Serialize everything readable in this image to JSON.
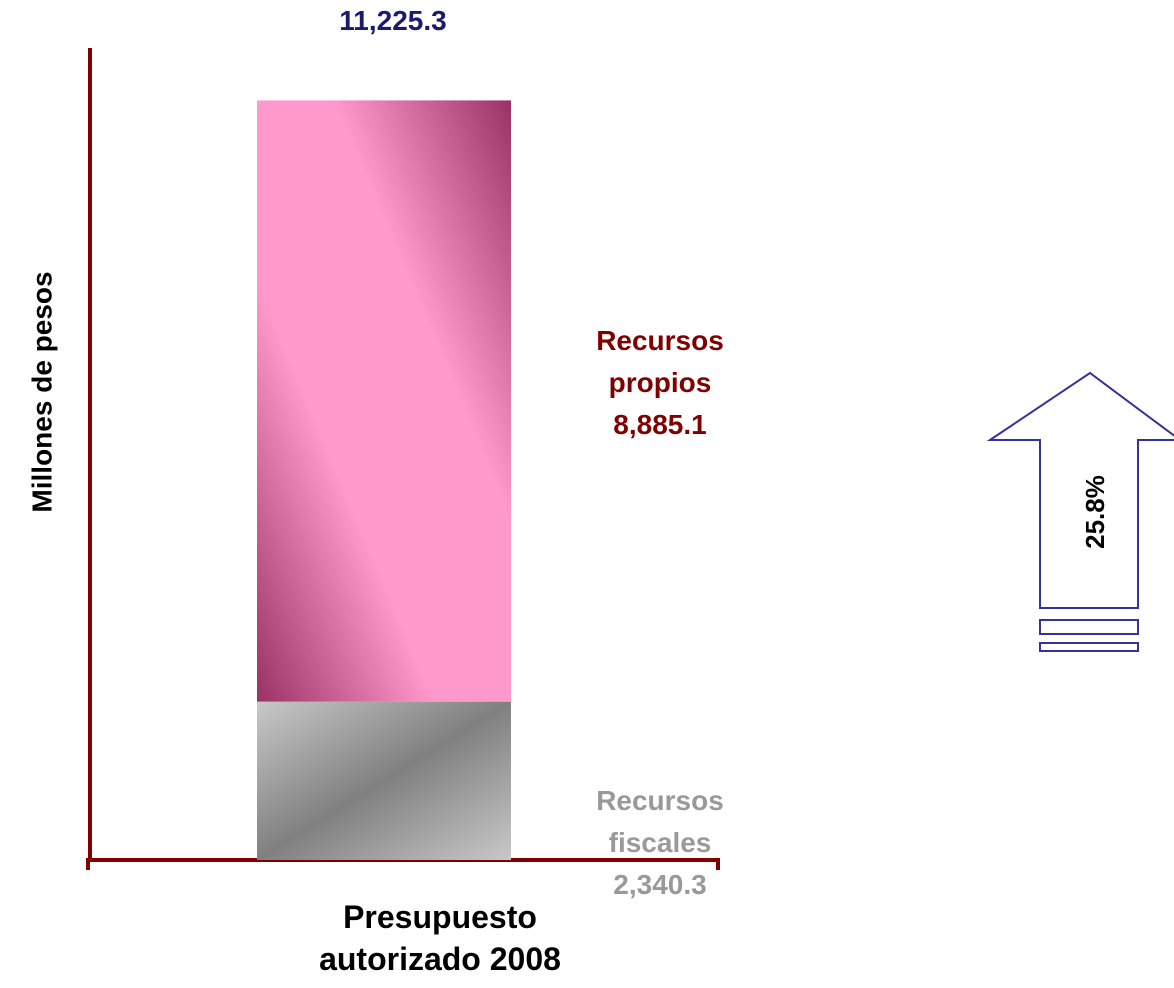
{
  "chart_data": {
    "type": "bar",
    "stacked": true,
    "categories": [
      "Presupuesto autorizado 2008"
    ],
    "ylabel": "Millones de pesos",
    "ylim": [
      0,
      12000
    ],
    "series": [
      {
        "name": "Recursos fiscales",
        "color": "#a0a0a0",
        "values": [
          2340.3
        ],
        "value_labels": [
          "2,340.3"
        ]
      },
      {
        "name": "Recursos propios",
        "color": "#ff99cc",
        "values": [
          8885.1
        ],
        "value_labels": [
          "8,885.1"
        ]
      }
    ],
    "total": 11225.3,
    "total_label": "11,225.3",
    "annotation": "25.8%"
  }
}
